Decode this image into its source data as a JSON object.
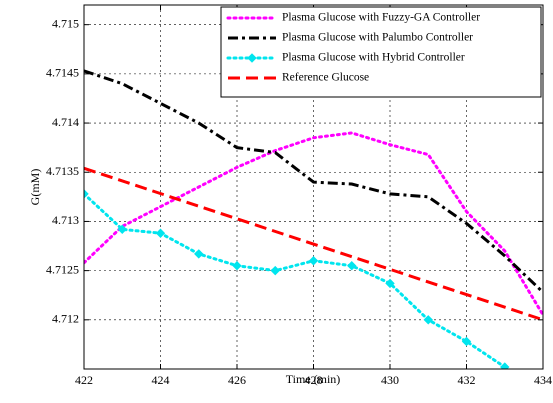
{
  "chart_data": {
    "type": "line",
    "title": "",
    "xlabel": "Time (min)",
    "ylabel": "G(mM)",
    "xlim": [
      422,
      434
    ],
    "ylim": [
      4.7115,
      4.7152
    ],
    "xticks": [
      422,
      424,
      426,
      428,
      430,
      432,
      434
    ],
    "yticks": [
      4.712,
      4.7125,
      4.713,
      4.7135,
      4.714,
      4.7145,
      4.715
    ],
    "ytick_labels": [
      "4.712",
      "4.7125",
      "4.713",
      "4.7135",
      "4.714",
      "4.7145",
      "4.715"
    ],
    "grid": true,
    "legend_position": "top-right",
    "series": [
      {
        "name": "Plasma Glucose with Fuzzy-GA Controller",
        "color": "#ff00ff",
        "style": "dotted",
        "marker": "none",
        "x": [
          422,
          423,
          424,
          425,
          426,
          427,
          428,
          429,
          430,
          431,
          432,
          433,
          434
        ],
        "y": [
          4.71258,
          4.71295,
          4.71315,
          4.71335,
          4.71355,
          4.71372,
          4.71385,
          4.7139,
          4.71378,
          4.71368,
          4.7131,
          4.7127,
          4.71205
        ]
      },
      {
        "name": "Plasma Glucose with Palumbo Controller",
        "color": "#000000",
        "style": "dashdot",
        "marker": "none",
        "x": [
          422,
          423,
          424,
          425,
          426,
          427,
          428,
          429,
          430,
          431,
          432,
          433,
          434
        ],
        "y": [
          4.71453,
          4.7144,
          4.7142,
          4.714,
          4.71375,
          4.7137,
          4.7134,
          4.71338,
          4.71328,
          4.71325,
          4.71298,
          4.71265,
          4.71228
        ]
      },
      {
        "name": "Plasma Glucose with Hybrid Controller",
        "color": "#00e5ee",
        "style": "dotted",
        "marker": "diamond",
        "x": [
          422,
          423,
          424,
          425,
          426,
          427,
          428,
          429,
          430,
          431,
          432,
          433
        ],
        "y": [
          4.71328,
          4.71292,
          4.71288,
          4.71267,
          4.71255,
          4.7125,
          4.7126,
          4.71255,
          4.71237,
          4.712,
          4.71178,
          4.71152
        ]
      },
      {
        "name": "Reference Glucose",
        "color": "#ff0000",
        "style": "dashed",
        "marker": "none",
        "x": [
          422,
          434
        ],
        "y": [
          4.71354,
          4.712
        ]
      }
    ]
  }
}
